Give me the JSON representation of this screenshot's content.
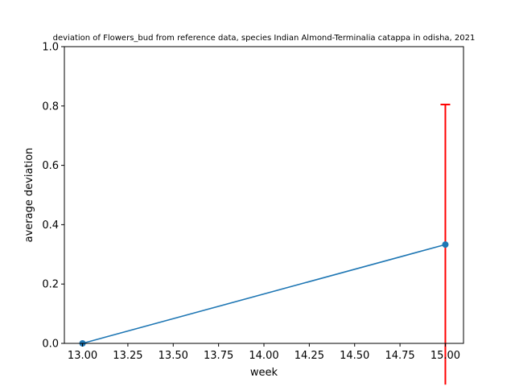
{
  "chart_data": {
    "type": "line",
    "title": "deviation of Flowers_bud from reference data, species Indian Almond-Terminalia catappa in odisha, 2021",
    "xlabel": "week",
    "ylabel": "average deviation",
    "xlim": [
      12.9,
      15.1
    ],
    "ylim": [
      0,
      1.0
    ],
    "x_ticks": [
      "13.00",
      "13.25",
      "13.50",
      "13.75",
      "14.00",
      "14.25",
      "14.50",
      "14.75",
      "15.00"
    ],
    "y_ticks": [
      "0.0",
      "0.2",
      "0.4",
      "0.6",
      "0.8",
      "1.0"
    ],
    "grid": false,
    "series": [
      {
        "x": [
          13,
          15
        ],
        "y": [
          0.0,
          0.333
        ],
        "error": [
          0.0,
          0.472
        ],
        "color": "#1f77b4",
        "error_color": "#ff0000"
      }
    ]
  }
}
